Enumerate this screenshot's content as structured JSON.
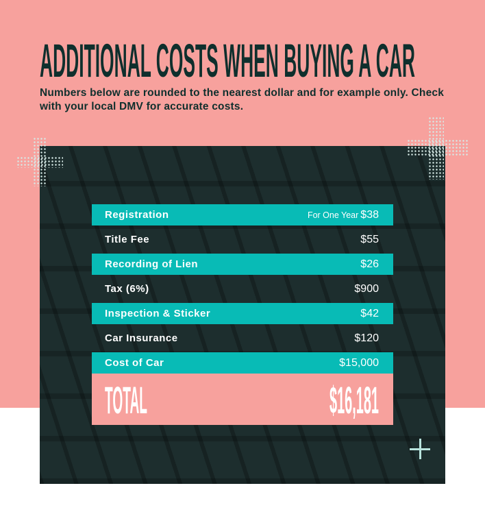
{
  "header": {
    "title": "ADDITIONAL COSTS WHEN BUYING A CAR",
    "subtitle": "Numbers below are rounded to the nearest dollar and for example only. Check with your local DMV for accurate costs."
  },
  "colors": {
    "background": "#f7a19d",
    "accent": "#08bbb6",
    "panel": "#1d2e2e",
    "text": "#0f2f2d"
  },
  "costs": [
    {
      "label": "Registration",
      "note": "For One Year",
      "value": "$38"
    },
    {
      "label": "Title Fee",
      "value": "$55"
    },
    {
      "label": "Recording of Lien",
      "value": "$26"
    },
    {
      "label": "Tax (6%)",
      "value": "$900"
    },
    {
      "label": "Inspection & Sticker",
      "value": "$42"
    },
    {
      "label": "Car Insurance",
      "value": "$120"
    },
    {
      "label": "Cost of Car",
      "value": "$15,000"
    }
  ],
  "total": {
    "label": "TOTAL",
    "value": "$16,181"
  }
}
